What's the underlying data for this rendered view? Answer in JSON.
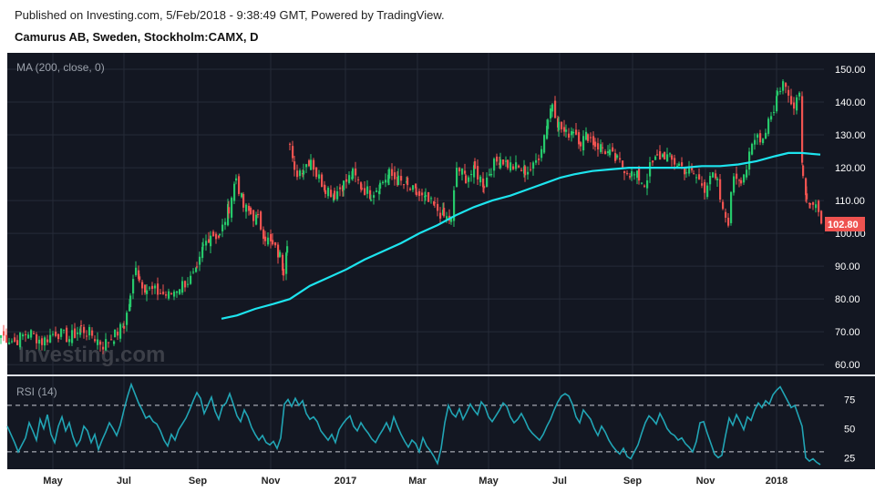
{
  "header": {
    "published": "Published on Investing.com, 5/Feb/2018 - 9:38:49 GMT, Powered by TradingView.",
    "symbol": "Camurus AB, Sweden, Stockholm:CAMX, D"
  },
  "watermark": "Investing.com",
  "colors": {
    "background": "#131722",
    "up": "#26c96b",
    "down": "#ef5350",
    "ma": "#1de4ee",
    "rsi": "#21a5b5",
    "price_tag": "#ef5350"
  },
  "chart_data": [
    {
      "type": "candlestick",
      "indicator_label": "MA (200, close, 0)",
      "ylim": [
        57,
        155
      ],
      "y_ticks": [
        "150.00",
        "140.00",
        "130.00",
        "120.00",
        "110.00",
        "100.00",
        "90.00",
        "80.00",
        "70.00",
        "60.00"
      ],
      "y_tick_values": [
        150,
        140,
        130,
        120,
        110,
        100,
        90,
        80,
        70,
        60
      ],
      "last_price": "102.80",
      "x_ticks": [
        "May",
        "Jul",
        "Sep",
        "Nov",
        "2017",
        "Mar",
        "May",
        "Jul",
        "Sep",
        "Nov",
        "2018"
      ],
      "close_path": [
        [
          0,
          69
        ],
        [
          15,
          67
        ],
        [
          30,
          70
        ],
        [
          45,
          67
        ],
        [
          60,
          70
        ],
        [
          75,
          68
        ],
        [
          88,
          71
        ],
        [
          100,
          69
        ],
        [
          112,
          66
        ],
        [
          125,
          69
        ],
        [
          135,
          72
        ],
        [
          142,
          80
        ],
        [
          148,
          91
        ],
        [
          152,
          86
        ],
        [
          160,
          83
        ],
        [
          172,
          82
        ],
        [
          184,
          81
        ],
        [
          196,
          84
        ],
        [
          208,
          86
        ],
        [
          215,
          88
        ],
        [
          222,
          96
        ],
        [
          230,
          100
        ],
        [
          240,
          99
        ],
        [
          250,
          108
        ],
        [
          258,
          117
        ],
        [
          266,
          108
        ],
        [
          274,
          106
        ],
        [
          282,
          104
        ],
        [
          290,
          99
        ],
        [
          298,
          96
        ],
        [
          306,
          93
        ],
        [
          310,
          89
        ],
        [
          314,
          98
        ],
        [
          317,
          127
        ],
        [
          322,
          118
        ],
        [
          332,
          120
        ],
        [
          340,
          123
        ],
        [
          346,
          118
        ],
        [
          356,
          114
        ],
        [
          366,
          112
        ],
        [
          376,
          115
        ],
        [
          386,
          118
        ],
        [
          396,
          114
        ],
        [
          406,
          112
        ],
        [
          416,
          115
        ],
        [
          426,
          118
        ],
        [
          436,
          116
        ],
        [
          446,
          114
        ],
        [
          456,
          112
        ],
        [
          466,
          110
        ],
        [
          476,
          108
        ],
        [
          486,
          105
        ],
        [
          494,
          104
        ],
        [
          500,
          120
        ],
        [
          510,
          117
        ],
        [
          520,
          119
        ],
        [
          530,
          115
        ],
        [
          538,
          120
        ],
        [
          548,
          123
        ],
        [
          556,
          121
        ],
        [
          565,
          120
        ],
        [
          575,
          119
        ],
        [
          584,
          120
        ],
        [
          590,
          124
        ],
        [
          596,
          130
        ],
        [
          600,
          135
        ],
        [
          605,
          140
        ],
        [
          612,
          133
        ],
        [
          620,
          130
        ],
        [
          628,
          132
        ],
        [
          636,
          128
        ],
        [
          644,
          130
        ],
        [
          652,
          127
        ],
        [
          660,
          126
        ],
        [
          668,
          124
        ],
        [
          676,
          122
        ],
        [
          684,
          120
        ],
        [
          692,
          118
        ],
        [
          700,
          117
        ],
        [
          706,
          115
        ],
        [
          712,
          120
        ],
        [
          720,
          123
        ],
        [
          728,
          124
        ],
        [
          736,
          122
        ],
        [
          744,
          121
        ],
        [
          752,
          119
        ],
        [
          760,
          118
        ],
        [
          766,
          116
        ],
        [
          772,
          114
        ],
        [
          778,
          118
        ],
        [
          786,
          115
        ],
        [
          792,
          106
        ],
        [
          798,
          104
        ],
        [
          804,
          118
        ],
        [
          812,
          117
        ],
        [
          818,
          120
        ],
        [
          824,
          126
        ],
        [
          830,
          130
        ],
        [
          836,
          129
        ],
        [
          842,
          135
        ],
        [
          848,
          138
        ],
        [
          852,
          143
        ],
        [
          858,
          146
        ],
        [
          864,
          142
        ],
        [
          870,
          140
        ],
        [
          876,
          143
        ],
        [
          880,
          117
        ],
        [
          884,
          112
        ],
        [
          888,
          109
        ],
        [
          894,
          107
        ],
        [
          900,
          103
        ]
      ],
      "ma_path": [
        [
          243,
          74
        ],
        [
          260,
          75
        ],
        [
          280,
          77
        ],
        [
          300,
          78.5
        ],
        [
          318,
          80
        ],
        [
          340,
          84
        ],
        [
          360,
          86.5
        ],
        [
          380,
          89
        ],
        [
          400,
          92
        ],
        [
          420,
          94.5
        ],
        [
          440,
          97
        ],
        [
          460,
          100
        ],
        [
          480,
          102.5
        ],
        [
          500,
          105.5
        ],
        [
          520,
          108
        ],
        [
          540,
          110
        ],
        [
          560,
          111.5
        ],
        [
          580,
          113.5
        ],
        [
          600,
          115.5
        ],
        [
          615,
          117
        ],
        [
          630,
          118
        ],
        [
          650,
          119
        ],
        [
          670,
          119.5
        ],
        [
          690,
          120
        ],
        [
          710,
          120
        ],
        [
          730,
          120
        ],
        [
          750,
          120
        ],
        [
          770,
          120.5
        ],
        [
          790,
          120.5
        ],
        [
          810,
          121
        ],
        [
          830,
          122
        ],
        [
          850,
          123.5
        ],
        [
          865,
          124.5
        ],
        [
          880,
          124.5
        ],
        [
          900,
          124
        ]
      ],
      "gaps_after_index": [
        32,
        113
      ]
    },
    {
      "type": "line",
      "indicator_label": "RSI (14)",
      "ylim": [
        15,
        95
      ],
      "y_ticks": [
        "75",
        "50",
        "25"
      ],
      "y_tick_values": [
        75,
        50,
        25
      ],
      "dashed_levels": [
        70,
        30
      ],
      "x": [
        8,
        12,
        16,
        20,
        24,
        28,
        32,
        36,
        40,
        44,
        48,
        52,
        56,
        60,
        64,
        68,
        72,
        76,
        80,
        84,
        88,
        92,
        96,
        100,
        104,
        108,
        112,
        116,
        120,
        124,
        128,
        132,
        136,
        140,
        144,
        148,
        152,
        156,
        160,
        164,
        168,
        172,
        176,
        180,
        184,
        188,
        192,
        196,
        200,
        204,
        208,
        212,
        216,
        220,
        224,
        228,
        232,
        236,
        240,
        244,
        248,
        252,
        256,
        260,
        264,
        268,
        272,
        276,
        280,
        284,
        288,
        292,
        296,
        300,
        304,
        308,
        312,
        316,
        320,
        324,
        328,
        332,
        336,
        340,
        344,
        348,
        352,
        356,
        360,
        364,
        368,
        372,
        376,
        380,
        384,
        388,
        392,
        396,
        400,
        404,
        408,
        412,
        416,
        420,
        424,
        428,
        432,
        436,
        440,
        444,
        448,
        452,
        456,
        460,
        464,
        468,
        472,
        476,
        480,
        484,
        488,
        492,
        496,
        500,
        504,
        508,
        512,
        516,
        520,
        524,
        528,
        532,
        536,
        540,
        544,
        548,
        552,
        556,
        560,
        564,
        568,
        572,
        576,
        580,
        584,
        588,
        592,
        596,
        600,
        604,
        608,
        612,
        616,
        620,
        624,
        628,
        632,
        636,
        640,
        644,
        648,
        652,
        656,
        660,
        664,
        668,
        672,
        676,
        680,
        684,
        688,
        692,
        696,
        700,
        704,
        708,
        712,
        716,
        720,
        724,
        728,
        732,
        736,
        740,
        744,
        748,
        752,
        756,
        760,
        764,
        768,
        772,
        776,
        780,
        784,
        788,
        792,
        796,
        800,
        804,
        808,
        812,
        816,
        820,
        824,
        828,
        832,
        836,
        840,
        844,
        848,
        852,
        856,
        860,
        864,
        868,
        872,
        876,
        880,
        884,
        888,
        892,
        896,
        900
      ],
      "values": [
        52,
        45,
        38,
        30,
        36,
        42,
        55,
        48,
        40,
        58,
        50,
        62,
        45,
        38,
        52,
        60,
        48,
        55,
        43,
        35,
        40,
        52,
        48,
        38,
        45,
        32,
        40,
        47,
        55,
        50,
        44,
        53,
        66,
        78,
        88,
        80,
        72,
        66,
        59,
        61,
        56,
        54,
        48,
        40,
        35,
        45,
        40,
        49,
        54,
        59,
        66,
        74,
        81,
        76,
        63,
        70,
        77,
        65,
        58,
        69,
        72,
        80,
        71,
        61,
        56,
        66,
        60,
        51,
        45,
        40,
        44,
        38,
        36,
        39,
        33,
        42,
        71,
        75,
        69,
        76,
        70,
        74,
        63,
        58,
        60,
        56,
        48,
        44,
        40,
        45,
        38,
        49,
        54,
        58,
        61,
        52,
        48,
        55,
        50,
        46,
        41,
        38,
        44,
        49,
        55,
        48,
        60,
        52,
        45,
        39,
        34,
        40,
        37,
        30,
        42,
        35,
        31,
        26,
        20,
        33,
        55,
        70,
        63,
        60,
        67,
        58,
        64,
        71,
        66,
        62,
        73,
        69,
        60,
        56,
        61,
        66,
        72,
        69,
        60,
        55,
        58,
        63,
        57,
        50,
        46,
        43,
        40,
        45,
        52,
        58,
        66,
        73,
        78,
        80,
        78,
        71,
        60,
        55,
        66,
        62,
        58,
        50,
        44,
        52,
        47,
        40,
        35,
        31,
        28,
        33,
        26,
        24,
        30,
        36,
        46,
        55,
        61,
        58,
        54,
        63,
        57,
        50,
        46,
        44,
        40,
        42,
        37,
        34,
        30,
        39,
        55,
        56,
        46,
        37,
        28,
        25,
        27,
        44,
        59,
        53,
        62,
        56,
        49,
        60,
        57,
        66,
        72,
        68,
        74,
        71,
        79,
        83,
        86,
        80,
        74,
        68,
        70,
        61,
        52,
        25,
        22,
        24,
        21,
        19
      ]
    }
  ]
}
